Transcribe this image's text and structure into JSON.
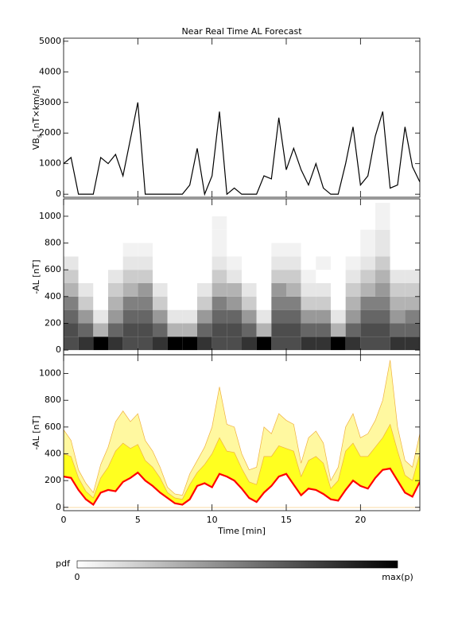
{
  "chart_data": [
    {
      "type": "line",
      "title": "Near Real Time AL Forecast",
      "ylabel": {
        "main": "VB",
        "sub": "s",
        "unit": " [nT×km/s]"
      },
      "x": [
        0,
        0.5,
        1,
        1.5,
        2,
        2.5,
        3,
        3.5,
        4,
        4.5,
        5,
        5.5,
        6,
        6.5,
        7,
        7.5,
        8,
        8.5,
        9,
        9.5,
        10,
        10.5,
        11,
        11.5,
        12,
        12.5,
        13,
        13.5,
        14,
        14.5,
        15,
        15.5,
        16,
        16.5,
        17,
        17.5,
        18,
        18.5,
        19,
        19.5,
        20,
        20.5,
        21,
        21.5,
        22,
        22.5,
        23,
        23.5,
        24
      ],
      "series": [
        {
          "color": "#000000",
          "values": [
            1000,
            1200,
            0,
            0,
            0,
            1200,
            1000,
            1300,
            600,
            1800,
            3000,
            0,
            0,
            0,
            0,
            0,
            0,
            300,
            1500,
            0,
            600,
            2700,
            0,
            200,
            0,
            0,
            0,
            600,
            500,
            2500,
            800,
            1500,
            800,
            300,
            1000,
            200,
            0,
            0,
            1000,
            2200,
            300,
            600,
            1900,
            2700,
            200,
            300,
            2200,
            900,
            400
          ]
        }
      ],
      "xlim": [
        0,
        24
      ],
      "ylim": [
        -100,
        5100
      ],
      "yticks": [
        0,
        1000,
        2000,
        3000,
        4000,
        5000
      ]
    },
    {
      "type": "heatmap",
      "ylabel": "-AL [nT]",
      "xbins": [
        0,
        1,
        2,
        3,
        4,
        5,
        6,
        7,
        8,
        9,
        10,
        11,
        12,
        13,
        14,
        15,
        16,
        17,
        18,
        19,
        20,
        21,
        22,
        23,
        24
      ],
      "ybins": [
        0,
        100,
        200,
        300,
        400,
        500,
        600,
        700,
        800,
        900,
        1000,
        1100
      ],
      "z": [
        [
          0.7,
          0.7,
          0.6,
          0.5,
          0.3,
          0.2,
          0.1,
          0,
          0,
          0,
          0
        ],
        [
          0.8,
          0.6,
          0.4,
          0.2,
          0.1,
          0,
          0,
          0,
          0,
          0,
          0
        ],
        [
          1,
          0.3,
          0.1,
          0,
          0,
          0,
          0,
          0,
          0,
          0,
          0
        ],
        [
          0.8,
          0.6,
          0.4,
          0.3,
          0.2,
          0.1,
          0,
          0,
          0,
          0,
          0
        ],
        [
          0.7,
          0.7,
          0.6,
          0.5,
          0.3,
          0.2,
          0.1,
          0.05,
          0,
          0,
          0
        ],
        [
          0.7,
          0.7,
          0.6,
          0.5,
          0.4,
          0.2,
          0.1,
          0.05,
          0,
          0,
          0
        ],
        [
          0.8,
          0.6,
          0.4,
          0.2,
          0.1,
          0,
          0,
          0,
          0,
          0,
          0
        ],
        [
          1,
          0.3,
          0.1,
          0,
          0,
          0,
          0,
          0,
          0,
          0,
          0
        ],
        [
          1,
          0.3,
          0.1,
          0,
          0,
          0,
          0,
          0,
          0,
          0,
          0
        ],
        [
          0.8,
          0.6,
          0.4,
          0.2,
          0.1,
          0,
          0,
          0,
          0,
          0,
          0
        ],
        [
          0.7,
          0.7,
          0.6,
          0.5,
          0.3,
          0.2,
          0.1,
          0.05,
          0.05,
          0.05,
          0
        ],
        [
          0.7,
          0.7,
          0.6,
          0.4,
          0.3,
          0.1,
          0.05,
          0,
          0,
          0,
          0
        ],
        [
          0.8,
          0.6,
          0.4,
          0.2,
          0.1,
          0,
          0,
          0,
          0,
          0,
          0
        ],
        [
          1,
          0.3,
          0.1,
          0,
          0,
          0,
          0,
          0,
          0,
          0,
          0
        ],
        [
          0.7,
          0.7,
          0.6,
          0.5,
          0.4,
          0.2,
          0.1,
          0.05,
          0,
          0,
          0
        ],
        [
          0.7,
          0.7,
          0.6,
          0.5,
          0.3,
          0.2,
          0.1,
          0.05,
          0,
          0,
          0
        ],
        [
          0.8,
          0.6,
          0.4,
          0.2,
          0.1,
          0.05,
          0,
          0,
          0,
          0,
          0
        ],
        [
          0.8,
          0.6,
          0.4,
          0.2,
          0.1,
          0,
          0.05,
          0,
          0,
          0,
          0
        ],
        [
          1,
          0.3,
          0.1,
          0,
          0,
          0,
          0,
          0,
          0,
          0,
          0
        ],
        [
          0.8,
          0.6,
          0.4,
          0.3,
          0.2,
          0.1,
          0.05,
          0,
          0,
          0,
          0
        ],
        [
          0.7,
          0.7,
          0.6,
          0.5,
          0.3,
          0.2,
          0.1,
          0.05,
          0.05,
          0,
          0
        ],
        [
          0.7,
          0.7,
          0.6,
          0.5,
          0.4,
          0.3,
          0.2,
          0.1,
          0.1,
          0.05,
          0.05
        ],
        [
          0.8,
          0.6,
          0.4,
          0.3,
          0.2,
          0.1,
          0,
          0,
          0,
          0,
          0
        ],
        [
          0.8,
          0.6,
          0.5,
          0.3,
          0.2,
          0.1,
          0,
          0,
          0,
          0,
          0
        ]
      ],
      "xlim": [
        0,
        24
      ],
      "ylim": [
        -35,
        1130
      ],
      "yticks": [
        0,
        200,
        400,
        600,
        800,
        1000
      ],
      "colorbar": {
        "label": "pdf",
        "min_label": "0",
        "max_label": "max(p)"
      }
    },
    {
      "type": "area",
      "ylabel": "-AL [nT]",
      "xlabel": "Time [min]",
      "x": [
        0,
        0.5,
        1,
        1.5,
        2,
        2.5,
        3,
        3.5,
        4,
        4.5,
        5,
        5.5,
        6,
        6.5,
        7,
        7.5,
        8,
        8.5,
        9,
        9.5,
        10,
        10.5,
        11,
        11.5,
        12,
        12.5,
        13,
        13.5,
        14,
        14.5,
        15,
        15.5,
        16,
        16.5,
        17,
        17.5,
        18,
        18.5,
        19,
        19.5,
        20,
        20.5,
        21,
        21.5,
        22,
        22.5,
        23,
        23.5,
        24
      ],
      "series": [
        {
          "color": "#fff8a0",
          "values": [
            580,
            500,
            280,
            180,
            110,
            320,
            450,
            640,
            720,
            640,
            700,
            500,
            420,
            300,
            150,
            100,
            90,
            250,
            350,
            450,
            600,
            900,
            620,
            600,
            400,
            280,
            300,
            600,
            550,
            700,
            650,
            620,
            330,
            520,
            570,
            480,
            200,
            300,
            600,
            700,
            520,
            550,
            650,
            800,
            1100,
            600,
            350,
            300,
            550
          ]
        },
        {
          "color": "#ffff20",
          "values": [
            400,
            380,
            220,
            120,
            70,
            220,
            300,
            420,
            480,
            440,
            470,
            350,
            300,
            220,
            110,
            70,
            60,
            170,
            260,
            320,
            400,
            520,
            420,
            410,
            290,
            190,
            170,
            380,
            380,
            460,
            440,
            420,
            230,
            350,
            380,
            330,
            140,
            200,
            420,
            480,
            380,
            380,
            450,
            520,
            620,
            420,
            240,
            200,
            400
          ]
        },
        {
          "color": "#ff0000",
          "values": [
            230,
            220,
            130,
            60,
            20,
            110,
            130,
            120,
            190,
            220,
            260,
            200,
            160,
            110,
            70,
            30,
            20,
            60,
            160,
            180,
            150,
            250,
            230,
            200,
            140,
            70,
            40,
            110,
            160,
            230,
            250,
            170,
            90,
            140,
            130,
            100,
            60,
            50,
            130,
            200,
            160,
            140,
            220,
            280,
            290,
            200,
            110,
            80,
            190
          ]
        }
      ],
      "xlim": [
        0,
        24
      ],
      "ylim": [
        -25,
        1140
      ],
      "yticks": [
        0,
        200,
        400,
        600,
        800,
        1000
      ],
      "xticks": [
        0,
        5,
        10,
        15,
        20
      ]
    }
  ]
}
